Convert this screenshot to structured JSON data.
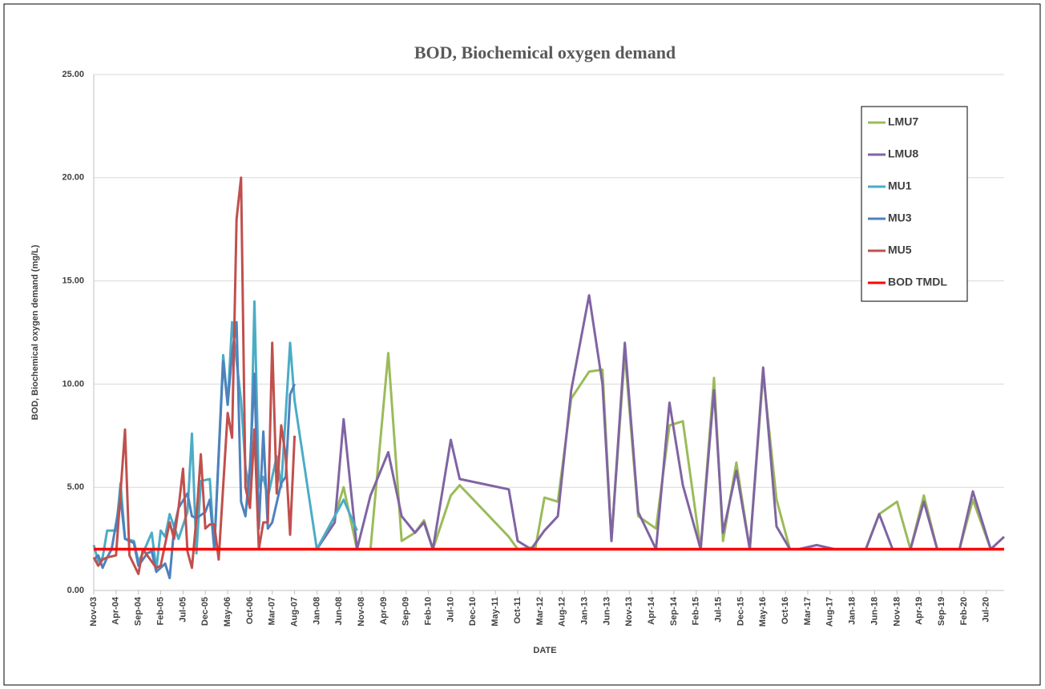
{
  "chart_data": {
    "type": "line",
    "title": "BOD, Biochemical oxygen demand",
    "x_label": "DATE",
    "y_label": "BOD, Biochemical oxygen demand (mg/L)",
    "xlim": [
      "2003-11",
      "2020-11"
    ],
    "ylim": [
      0,
      25
    ],
    "yticks": [
      {
        "value": 0,
        "label": "0.00"
      },
      {
        "value": 5,
        "label": "5.00"
      },
      {
        "value": 10,
        "label": "10.00"
      },
      {
        "value": 15,
        "label": "15.00"
      },
      {
        "value": 20,
        "label": "20.00"
      },
      {
        "value": 25,
        "label": "25.00"
      }
    ],
    "xticks": [
      {
        "value": "2003-11",
        "label": "Nov-03"
      },
      {
        "value": "2004-04",
        "label": "Apr-04"
      },
      {
        "value": "2004-09",
        "label": "Sep-04"
      },
      {
        "value": "2005-02",
        "label": "Feb-05"
      },
      {
        "value": "2005-07",
        "label": "Jul-05"
      },
      {
        "value": "2005-12",
        "label": "Dec-05"
      },
      {
        "value": "2006-05",
        "label": "May-06"
      },
      {
        "value": "2006-10",
        "label": "Oct-06"
      },
      {
        "value": "2007-03",
        "label": "Mar-07"
      },
      {
        "value": "2007-08",
        "label": "Aug-07"
      },
      {
        "value": "2008-01",
        "label": "Jan-08"
      },
      {
        "value": "2008-06",
        "label": "Jun-08"
      },
      {
        "value": "2008-11",
        "label": "Nov-08"
      },
      {
        "value": "2009-04",
        "label": "Apr-09"
      },
      {
        "value": "2009-09",
        "label": "Sep-09"
      },
      {
        "value": "2010-02",
        "label": "Feb-10"
      },
      {
        "value": "2010-07",
        "label": "Jul-10"
      },
      {
        "value": "2010-12",
        "label": "Dec-10"
      },
      {
        "value": "2011-05",
        "label": "May-11"
      },
      {
        "value": "2011-10",
        "label": "Oct-11"
      },
      {
        "value": "2012-03",
        "label": "Mar-12"
      },
      {
        "value": "2012-08",
        "label": "Aug-12"
      },
      {
        "value": "2013-01",
        "label": "Jan-13"
      },
      {
        "value": "2013-06",
        "label": "Jun-13"
      },
      {
        "value": "2013-11",
        "label": "Nov-13"
      },
      {
        "value": "2014-04",
        "label": "Apr-14"
      },
      {
        "value": "2014-09",
        "label": "Sep-14"
      },
      {
        "value": "2015-02",
        "label": "Feb-15"
      },
      {
        "value": "2015-07",
        "label": "Jul-15"
      },
      {
        "value": "2015-12",
        "label": "Dec-15"
      },
      {
        "value": "2016-05",
        "label": "May-16"
      },
      {
        "value": "2016-10",
        "label": "Oct-16"
      },
      {
        "value": "2017-03",
        "label": "Mar-17"
      },
      {
        "value": "2017-08",
        "label": "Aug-17"
      },
      {
        "value": "2018-01",
        "label": "Jan-18"
      },
      {
        "value": "2018-06",
        "label": "Jun-18"
      },
      {
        "value": "2018-11",
        "label": "Nov-18"
      },
      {
        "value": "2019-04",
        "label": "Apr-19"
      },
      {
        "value": "2019-09",
        "label": "Sep-19"
      },
      {
        "value": "2020-02",
        "label": "Feb-20"
      },
      {
        "value": "2020-07",
        "label": "Jul-20"
      }
    ],
    "grid": true,
    "legend": "upper right",
    "series": [
      {
        "name": "LMU7",
        "color": "#9bbb59",
        "x": [
          "2008-01",
          "2008-05",
          "2008-07",
          "2008-10",
          "2009-01",
          "2009-05",
          "2009-08",
          "2009-11",
          "2010-01",
          "2010-03",
          "2010-07",
          "2010-09",
          "2011-08",
          "2011-10",
          "2012-02",
          "2012-04",
          "2012-07",
          "2012-10",
          "2013-02",
          "2013-05",
          "2013-07",
          "2013-10",
          "2014-01",
          "2014-05",
          "2014-08",
          "2014-11",
          "2015-03",
          "2015-06",
          "2015-08",
          "2015-11",
          "2016-02",
          "2016-05",
          "2016-08",
          "2016-11",
          "2018-04",
          "2018-07",
          "2018-11",
          "2019-02",
          "2019-05",
          "2019-08",
          "2020-01",
          "2020-04",
          "2020-08"
        ],
        "values": [
          2.0,
          3.6,
          5.0,
          2.0,
          2.0,
          11.5,
          2.4,
          2.8,
          3.4,
          2.0,
          4.6,
          5.1,
          2.6,
          2.0,
          2.1,
          4.5,
          4.3,
          9.3,
          10.6,
          10.7,
          2.4,
          11.5,
          3.6,
          3.0,
          8.0,
          8.2,
          2.0,
          10.3,
          2.4,
          6.2,
          2.0,
          10.5,
          4.4,
          2.0,
          2.0,
          3.7,
          4.3,
          2.0,
          4.6,
          2.0,
          2.0,
          4.4,
          2.0
        ]
      },
      {
        "name": "LMU8",
        "color": "#8064a2",
        "x": [
          "2008-01",
          "2008-05",
          "2008-07",
          "2008-10",
          "2009-01",
          "2009-05",
          "2009-08",
          "2009-11",
          "2010-01",
          "2010-03",
          "2010-07",
          "2010-09",
          "2011-08",
          "2011-10",
          "2012-01",
          "2012-04",
          "2012-07",
          "2012-10",
          "2013-02",
          "2013-05",
          "2013-07",
          "2013-10",
          "2014-01",
          "2014-05",
          "2014-08",
          "2014-11",
          "2015-03",
          "2015-06",
          "2015-08",
          "2015-11",
          "2016-02",
          "2016-05",
          "2016-08",
          "2016-11",
          "2017-01",
          "2017-05",
          "2017-09",
          "2018-04",
          "2018-07",
          "2018-10",
          "2019-02",
          "2019-05",
          "2019-08",
          "2020-01",
          "2020-04",
          "2020-08",
          "2020-11"
        ],
        "values": [
          2.0,
          3.3,
          8.3,
          2.0,
          4.6,
          6.7,
          3.6,
          2.8,
          3.3,
          2.0,
          7.3,
          5.4,
          4.9,
          2.4,
          2.0,
          2.9,
          3.6,
          9.7,
          14.3,
          10.0,
          2.4,
          12.0,
          3.8,
          2.0,
          9.1,
          5.1,
          2.0,
          9.7,
          2.8,
          5.8,
          2.0,
          10.8,
          3.1,
          2.0,
          2.0,
          2.2,
          2.0,
          2.0,
          3.7,
          2.0,
          2.0,
          4.3,
          2.0,
          2.0,
          4.8,
          2.0,
          2.6
        ]
      },
      {
        "name": "MU1",
        "color": "#4bacc6",
        "x": [
          "2003-11",
          "2003-12",
          "2004-01",
          "2004-02",
          "2004-04",
          "2004-05",
          "2004-06",
          "2004-08",
          "2004-09",
          "2004-10",
          "2004-12",
          "2005-01",
          "2005-02",
          "2005-03",
          "2005-04",
          "2005-06",
          "2005-08",
          "2005-09",
          "2005-10",
          "2005-11",
          "2006-01",
          "2006-02",
          "2006-04",
          "2006-05",
          "2006-06",
          "2006-08",
          "2006-09",
          "2006-10",
          "2006-11",
          "2006-12",
          "2007-01",
          "2007-02",
          "2007-04",
          "2007-05",
          "2007-07",
          "2007-08",
          "2008-01",
          "2008-06",
          "2008-07",
          "2008-10"
        ],
        "values": [
          2.2,
          1.4,
          1.6,
          2.9,
          2.9,
          5.2,
          2.5,
          2.4,
          1.4,
          1.8,
          2.8,
          1.0,
          2.9,
          2.6,
          3.7,
          2.5,
          3.8,
          7.6,
          1.8,
          5.3,
          5.4,
          2.0,
          11.4,
          9.0,
          13.0,
          9.2,
          6.0,
          4.5,
          14.0,
          5.0,
          5.5,
          4.5,
          6.5,
          5.0,
          12.0,
          9.2,
          2.0,
          4.0,
          4.4,
          2.9
        ]
      },
      {
        "name": "MU3",
        "color": "#4f81bd",
        "x": [
          "2003-11",
          "2003-12",
          "2004-01",
          "2004-02",
          "2004-03",
          "2004-05",
          "2004-06",
          "2004-08",
          "2004-09",
          "2004-11",
          "2004-12",
          "2005-01",
          "2005-03",
          "2005-04",
          "2005-05",
          "2005-06",
          "2005-08",
          "2005-09",
          "2005-10",
          "2005-12",
          "2006-01",
          "2006-02",
          "2006-04",
          "2006-05",
          "2006-06",
          "2006-07",
          "2006-08",
          "2006-09",
          "2006-10",
          "2006-11",
          "2006-12",
          "2007-01",
          "2007-02",
          "2007-03",
          "2007-05",
          "2007-06",
          "2007-07",
          "2007-08"
        ],
        "values": [
          1.5,
          1.7,
          1.1,
          1.6,
          2.0,
          4.5,
          2.5,
          2.3,
          1.2,
          1.8,
          1.9,
          0.9,
          1.3,
          0.6,
          3.0,
          4.0,
          4.7,
          3.6,
          3.5,
          3.8,
          4.4,
          2.0,
          11.1,
          9.0,
          11.5,
          13.0,
          4.3,
          3.6,
          6.0,
          10.5,
          3.0,
          7.7,
          3.0,
          3.3,
          5.2,
          5.5,
          9.5,
          10.0
        ]
      },
      {
        "name": "MU5",
        "color": "#c0504d",
        "x": [
          "2003-11",
          "2003-12",
          "2004-01",
          "2004-02",
          "2004-04",
          "2004-06",
          "2004-07",
          "2004-09",
          "2004-10",
          "2004-11",
          "2005-01",
          "2005-02",
          "2005-04",
          "2005-05",
          "2005-06",
          "2005-07",
          "2005-08",
          "2005-09",
          "2005-10",
          "2005-11",
          "2005-12",
          "2006-01",
          "2006-02",
          "2006-03",
          "2006-05",
          "2006-06",
          "2006-07",
          "2006-08",
          "2006-09",
          "2006-10",
          "2006-11",
          "2006-12",
          "2007-01",
          "2007-02",
          "2007-03",
          "2007-04",
          "2007-05",
          "2007-06",
          "2007-07",
          "2007-08"
        ],
        "values": [
          1.6,
          1.2,
          1.5,
          1.6,
          1.7,
          7.8,
          1.7,
          0.8,
          2.0,
          1.7,
          1.1,
          1.2,
          3.3,
          2.5,
          4.0,
          5.9,
          1.9,
          1.1,
          3.5,
          6.6,
          3.0,
          3.2,
          3.2,
          1.5,
          8.6,
          7.4,
          18.0,
          20.0,
          5.0,
          4.0,
          7.8,
          2.0,
          3.3,
          3.3,
          12.0,
          4.7,
          8.0,
          6.5,
          2.7,
          7.5
        ]
      },
      {
        "name": "BOD TMDL",
        "color": "#ff0000",
        "x": [
          "2003-11",
          "2020-11"
        ],
        "values": [
          2,
          2
        ]
      }
    ]
  }
}
